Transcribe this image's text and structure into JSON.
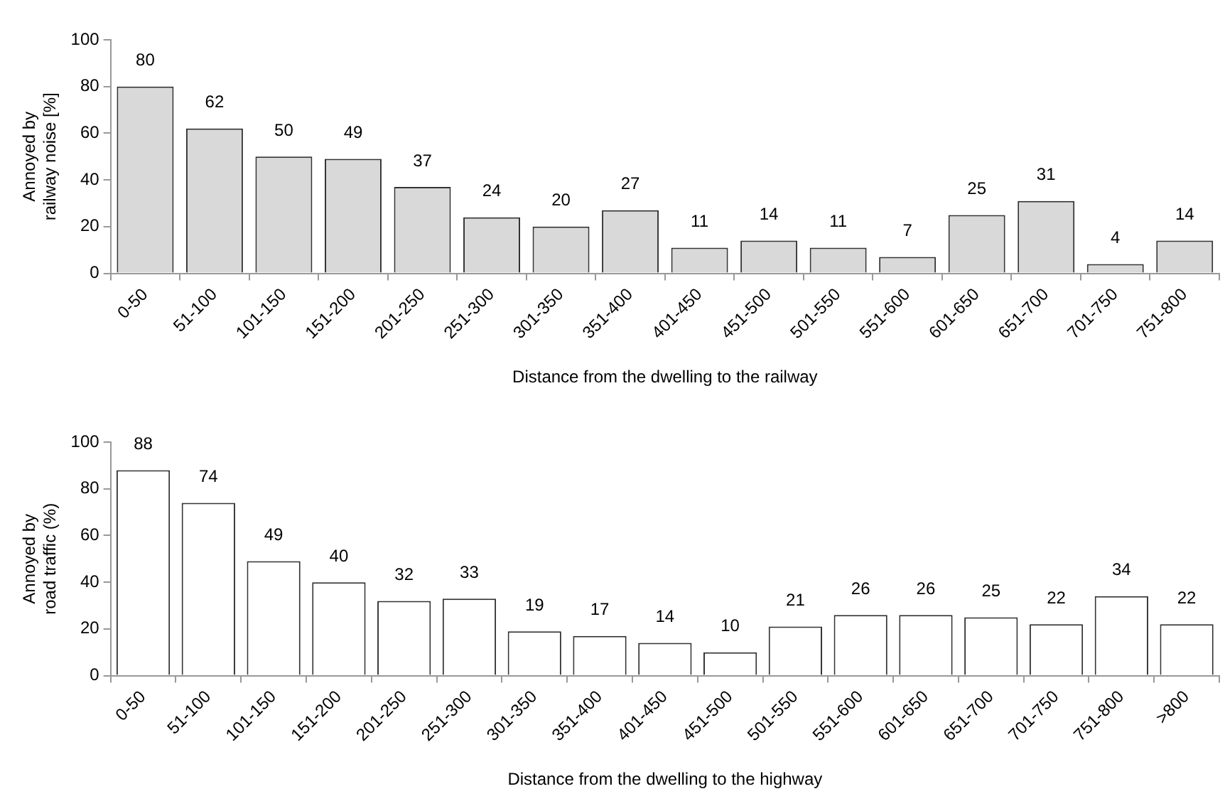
{
  "chart_data": [
    {
      "type": "bar",
      "xlabel": "Distance from the dwelling to the railway",
      "ylabel": "Annoyed by\nrailway noise [%]",
      "categories": [
        "0-50",
        "51-100",
        "101-150",
        "151-200",
        "201-250",
        "251-300",
        "301-350",
        "351-400",
        "401-450",
        "451-500",
        "501-550",
        "551-600",
        "601-650",
        "651-700",
        "701-750",
        "751-800"
      ],
      "values": [
        80,
        62,
        50,
        49,
        37,
        24,
        20,
        27,
        11,
        14,
        11,
        7,
        25,
        31,
        4,
        14
      ],
      "color": "#d9d9d9",
      "ylim": [
        0,
        100
      ],
      "yticks": [
        0,
        20,
        40,
        60,
        80,
        100
      ],
      "data_labels": true
    },
    {
      "type": "bar",
      "xlabel": "Distance from the dwelling to the highway",
      "ylabel": "Annoyed by\nroad traffic (%)",
      "categories": [
        "0-50",
        "51-100",
        "101-150",
        "151-200",
        "201-250",
        "251-300",
        "301-350",
        "351-400",
        "401-450",
        "451-500",
        "501-550",
        "551-600",
        "601-650",
        "651-700",
        "701-750",
        "751-800",
        ">800"
      ],
      "values": [
        88,
        74,
        49,
        40,
        32,
        33,
        19,
        17,
        14,
        10,
        21,
        26,
        26,
        25,
        22,
        34,
        22
      ],
      "color": "#ffffff",
      "ylim": [
        0,
        100
      ],
      "yticks": [
        0,
        20,
        40,
        60,
        80,
        100
      ],
      "data_labels": true
    }
  ]
}
